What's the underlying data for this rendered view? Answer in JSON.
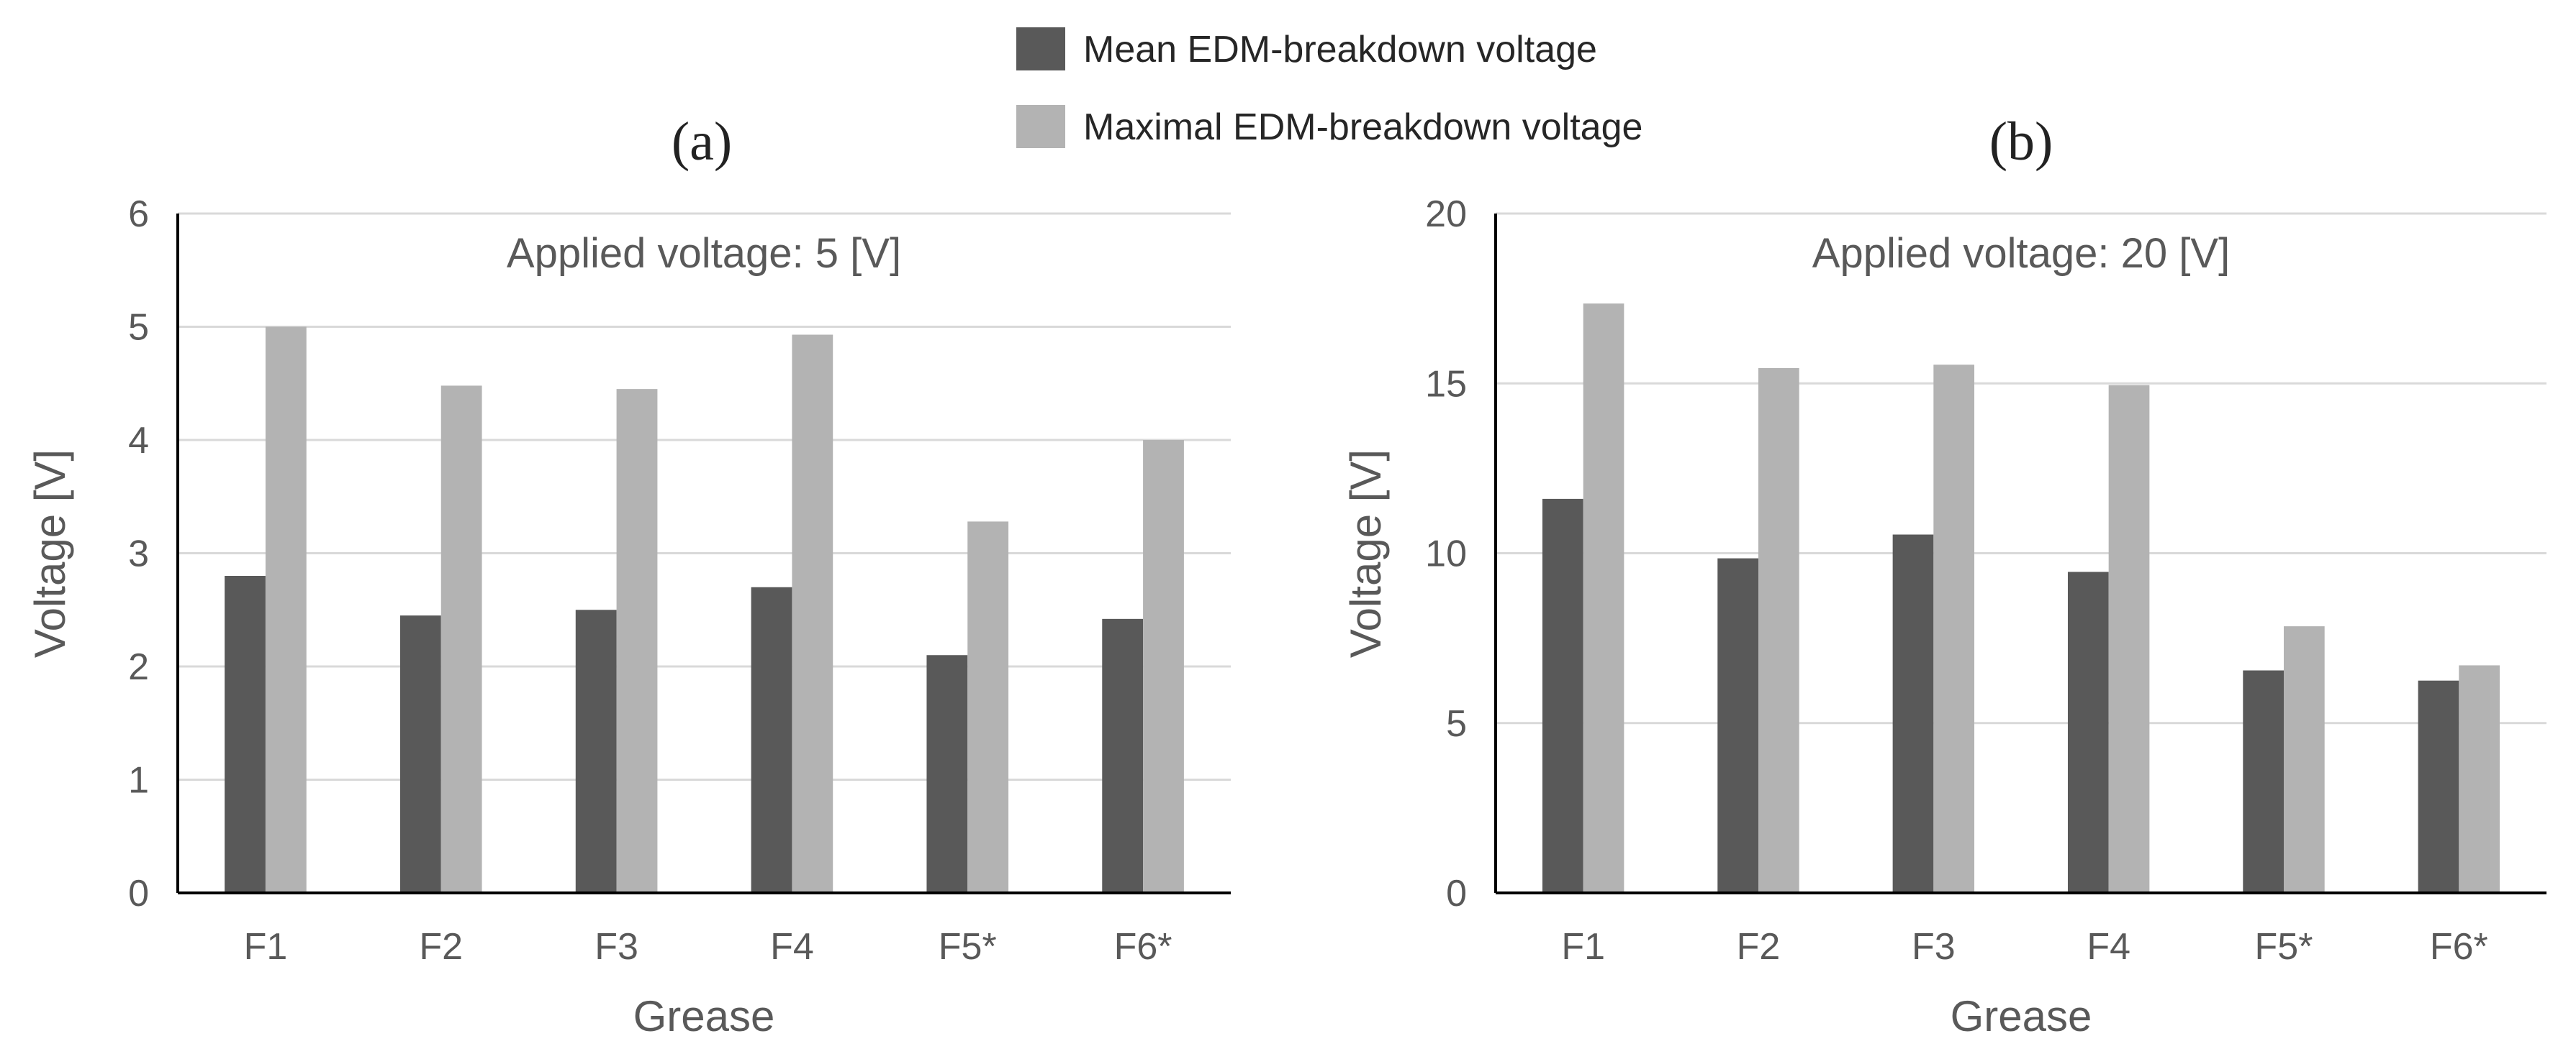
{
  "legend": {
    "placement": "top-center",
    "items": [
      {
        "label": "Mean EDM-breakdown voltage",
        "color": "#595959"
      },
      {
        "label": "Maximal EDM-breakdown voltage",
        "color": "#b3b3b3"
      }
    ]
  },
  "chart_data": [
    {
      "type": "bar",
      "panel_label": "(a)",
      "title": "Applied voltage: 5 [V]",
      "xlabel": "Grease",
      "ylabel": "Voltage [V]",
      "ylim": [
        0,
        6
      ],
      "yticks": [
        "0",
        "1",
        "2",
        "3",
        "4",
        "5",
        "6"
      ],
      "grid": true,
      "categories": [
        "F1",
        "F2",
        "F3",
        "F4",
        "F5*",
        "F6*"
      ],
      "series": [
        {
          "name": "Mean EDM-breakdown voltage",
          "color": "#595959",
          "values": [
            2.8,
            2.45,
            2.5,
            2.7,
            2.1,
            2.42
          ]
        },
        {
          "name": "Maximal EDM-breakdown voltage",
          "color": "#b3b3b3",
          "values": [
            5.0,
            4.48,
            4.45,
            4.93,
            3.28,
            4.0
          ]
        }
      ]
    },
    {
      "type": "bar",
      "panel_label": "(b)",
      "title": "Applied voltage: 20 [V]",
      "xlabel": "Grease",
      "ylabel": "Voltage [V]",
      "ylim": [
        0,
        20
      ],
      "yticks": [
        "0",
        "5",
        "10",
        "15",
        "20"
      ],
      "grid": true,
      "categories": [
        "F1",
        "F2",
        "F3",
        "F4",
        "F5*",
        "F6*"
      ],
      "series": [
        {
          "name": "Mean EDM-breakdown voltage",
          "color": "#595959",
          "values": [
            11.6,
            9.85,
            10.55,
            9.45,
            6.55,
            6.25
          ]
        },
        {
          "name": "Maximal EDM-breakdown voltage",
          "color": "#b3b3b3",
          "values": [
            17.35,
            15.45,
            15.55,
            14.95,
            7.85,
            6.7
          ]
        }
      ]
    }
  ]
}
